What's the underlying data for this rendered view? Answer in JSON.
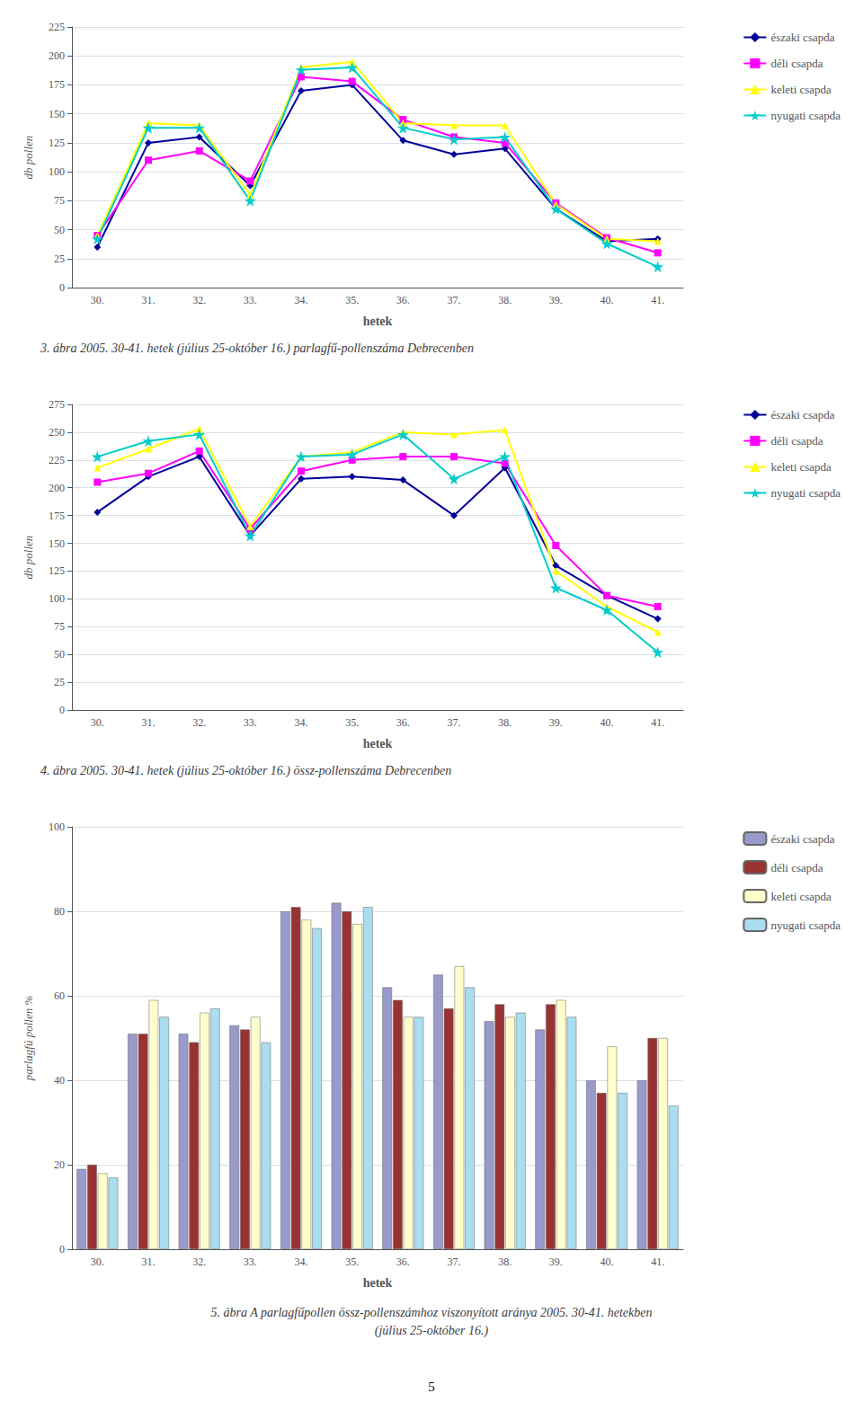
{
  "chart_data": [
    {
      "type": "line",
      "title": "3. ábra 2005. 30-41. hetek (július 25-október 16.) parlagfű-pollenszáma Debrecenben",
      "categories": [
        "30.",
        "31.",
        "32.",
        "33.",
        "34.",
        "35.",
        "36.",
        "37.",
        "38.",
        "39.",
        "40.",
        "41."
      ],
      "series": [
        {
          "name": "északi csapda",
          "color": "#000099",
          "marker": "diamond",
          "values": [
            35,
            125,
            130,
            88,
            170,
            175,
            127,
            115,
            120,
            68,
            40,
            42
          ]
        },
        {
          "name": "déli csapda",
          "color": "#ff00ff",
          "marker": "square",
          "values": [
            45,
            110,
            118,
            92,
            182,
            178,
            145,
            130,
            125,
            73,
            43,
            30
          ]
        },
        {
          "name": "keleti csapda",
          "color": "#ffff00",
          "marker": "triangle",
          "values": [
            45,
            142,
            140,
            80,
            190,
            195,
            142,
            140,
            140,
            72,
            42,
            40
          ]
        },
        {
          "name": "nyugati csapda",
          "color": "#00cccc",
          "marker": "star",
          "values": [
            42,
            138,
            138,
            75,
            188,
            190,
            138,
            128,
            130,
            68,
            38,
            18
          ]
        }
      ],
      "ylim": [
        0,
        225
      ],
      "yticks": [
        0,
        25,
        50,
        75,
        100,
        125,
        150,
        175,
        200,
        225
      ],
      "ylabel": "db pollen",
      "xlabel": "hetek",
      "grid": true,
      "legend": "right"
    },
    {
      "type": "line",
      "title": "4. ábra 2005. 30-41. hetek (július 25-október 16.) össz-pollenszáma Debrecenben",
      "categories": [
        "30.",
        "31.",
        "32.",
        "33.",
        "34.",
        "35.",
        "36.",
        "37.",
        "38.",
        "39.",
        "40.",
        "41."
      ],
      "series": [
        {
          "name": "északi csapda",
          "color": "#000099",
          "marker": "diamond",
          "values": [
            178,
            210,
            228,
            157,
            208,
            210,
            207,
            175,
            218,
            130,
            103,
            82
          ]
        },
        {
          "name": "déli csapda",
          "color": "#ff00ff",
          "marker": "square",
          "values": [
            205,
            213,
            233,
            163,
            215,
            225,
            228,
            228,
            222,
            148,
            103,
            93
          ]
        },
        {
          "name": "keleti csapda",
          "color": "#ffff00",
          "marker": "triangle",
          "values": [
            218,
            235,
            253,
            165,
            228,
            232,
            250,
            248,
            252,
            125,
            93,
            70
          ]
        },
        {
          "name": "nyugati csapda",
          "color": "#00cccc",
          "marker": "star",
          "values": [
            228,
            242,
            248,
            157,
            228,
            230,
            248,
            208,
            228,
            110,
            90,
            52
          ]
        }
      ],
      "ylim": [
        0,
        275
      ],
      "yticks": [
        0,
        25,
        50,
        75,
        100,
        125,
        150,
        175,
        200,
        225,
        250,
        275
      ],
      "ylabel": "db pollen",
      "xlabel": "hetek",
      "grid": true,
      "legend": "right"
    },
    {
      "type": "bar",
      "title": "5. ábra A parlagfűpollen össz-pollenszámhoz viszonyított aránya 2005. 30-41. hetekben\n(július 25-október 16.)",
      "categories": [
        "30.",
        "31.",
        "32.",
        "33.",
        "34.",
        "35.",
        "36.",
        "37.",
        "38.",
        "39.",
        "40.",
        "41."
      ],
      "series": [
        {
          "name": "északi csapda",
          "color": "#9999cc",
          "values": [
            19,
            51,
            51,
            53,
            80,
            82,
            62,
            65,
            54,
            52,
            40,
            40
          ]
        },
        {
          "name": "déli csapda",
          "color": "#993333",
          "values": [
            20,
            51,
            49,
            52,
            81,
            80,
            59,
            57,
            58,
            58,
            37,
            50
          ]
        },
        {
          "name": "keleti csapda",
          "color": "#ffffcc",
          "values": [
            18,
            59,
            56,
            55,
            78,
            77,
            55,
            67,
            55,
            59,
            48,
            50
          ]
        },
        {
          "name": "nyugati csapda",
          "color": "#aaddee",
          "values": [
            17,
            55,
            57,
            49,
            76,
            81,
            55,
            62,
            56,
            55,
            37,
            34
          ]
        }
      ],
      "ylim": [
        0,
        100
      ],
      "yticks": [
        0,
        20,
        40,
        60,
        80,
        100
      ],
      "ylabel": "parlagfú pollen %",
      "xlabel": "hetek",
      "grid": true,
      "legend": "right",
      "annotations": [
        "5"
      ]
    }
  ]
}
